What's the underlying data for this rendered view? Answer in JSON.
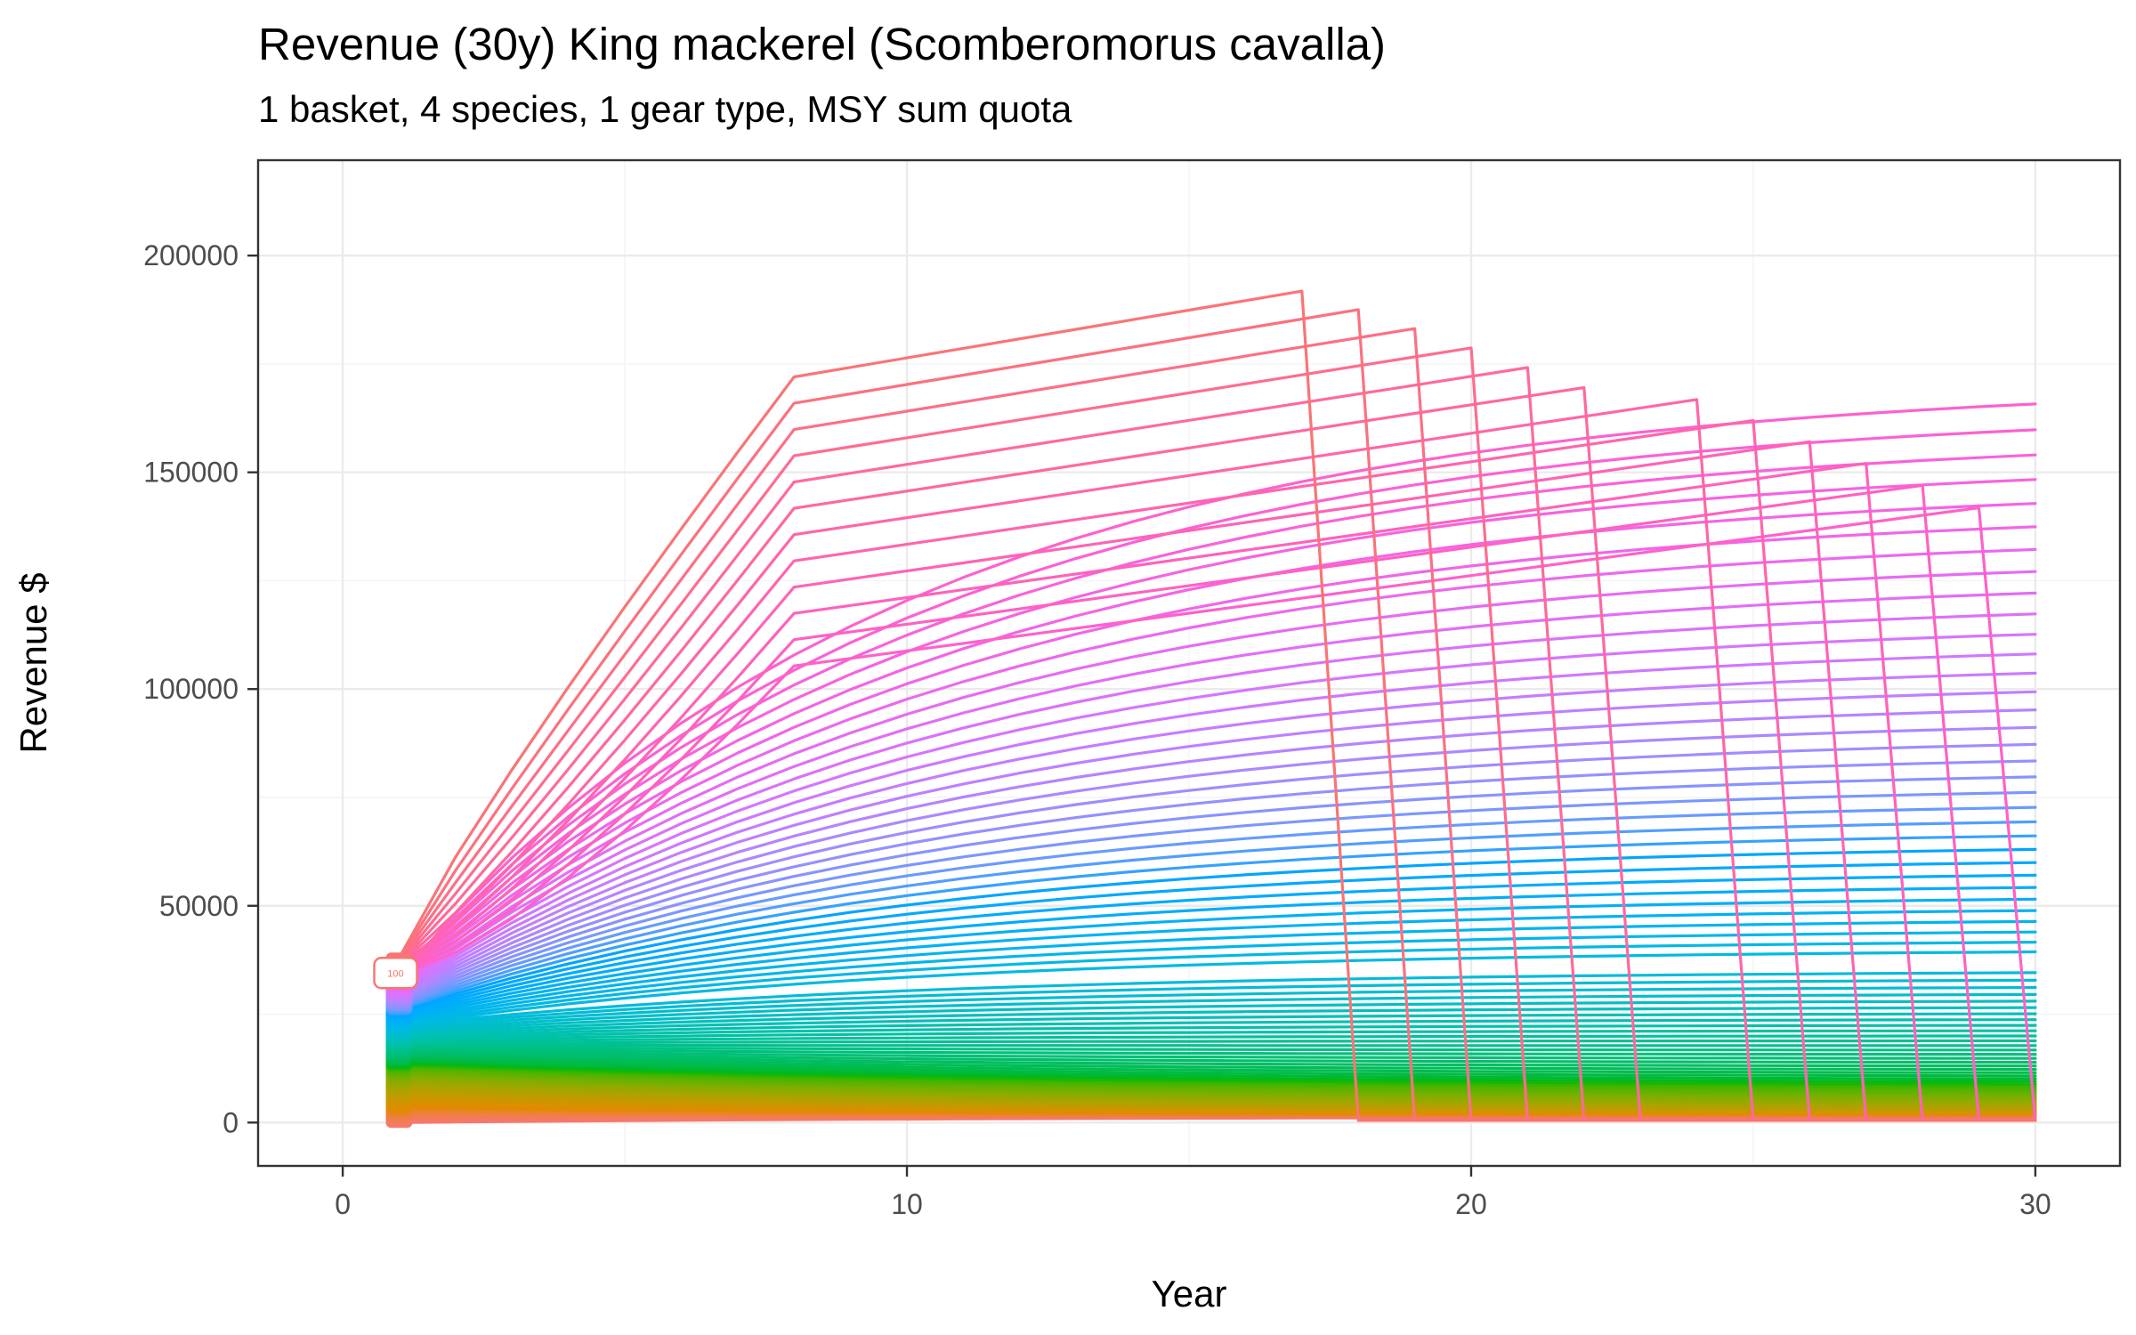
{
  "chart_data": {
    "type": "line",
    "title": "Revenue (30y) King mackerel (Scomberomorus cavalla)",
    "subtitle": "1 basket, 4 species, 1 gear type, MSY sum quota",
    "xlabel": "Year",
    "ylabel": "Revenue $",
    "xlim": [
      -1.5,
      31.5
    ],
    "ylim": [
      -10000,
      222000
    ],
    "x_ticks": [
      0,
      10,
      20,
      30
    ],
    "y_ticks": [
      0,
      50000,
      100000,
      150000,
      200000
    ],
    "x_tick_labels": [
      "0",
      "10",
      "20",
      "30"
    ],
    "y_tick_labels": [
      "0",
      "50000",
      "100000",
      "150000",
      "200000"
    ],
    "grid": true,
    "legend": "none",
    "end_label": "100",
    "colors": {
      "panel_border": "#333333",
      "grid": "#ebebeb",
      "collapsed_series": "#f8766d",
      "label_border": "#f8766d"
    },
    "series_summary": {
      "count": 100,
      "x": [
        1,
        30
      ],
      "color_order": "ggplot2 hue palette from #f8766d through green #00ba38, blue #619cff to magenta #f564e3",
      "start_revenue_range": [
        0,
        38000
      ],
      "top_series_peak": {
        "year": 17,
        "revenue": 211000
      },
      "collapse_years": [
        17,
        18,
        19,
        20,
        21,
        22,
        23,
        24,
        25,
        26,
        27,
        28,
        29
      ],
      "year30_upper_envelope": 180000
    }
  }
}
